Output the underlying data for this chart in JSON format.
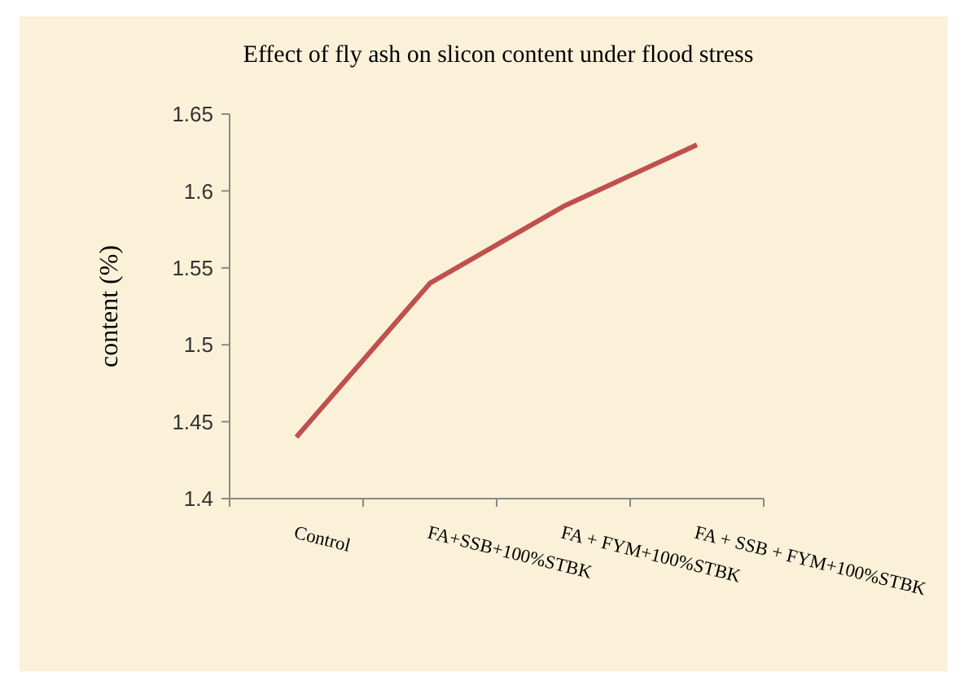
{
  "chart_data": {
    "type": "line",
    "title": "Effect  of fly ash on slicon content  under flood stress",
    "ylabel": "content (%)",
    "categories": [
      "Control",
      "FA+SSB+100%STBK",
      "FA + FYM+100%STBK",
      "FA + SSB + FYM+100%STBK"
    ],
    "series": [
      {
        "color": "#c0504d",
        "values": [
          1.44,
          1.54,
          1.59,
          1.63
        ]
      }
    ],
    "ylim": [
      1.4,
      1.65
    ],
    "yticks": [
      1.4,
      1.45,
      1.5,
      1.55,
      1.6,
      1.65
    ],
    "marker": "none",
    "line_style": "solid"
  }
}
